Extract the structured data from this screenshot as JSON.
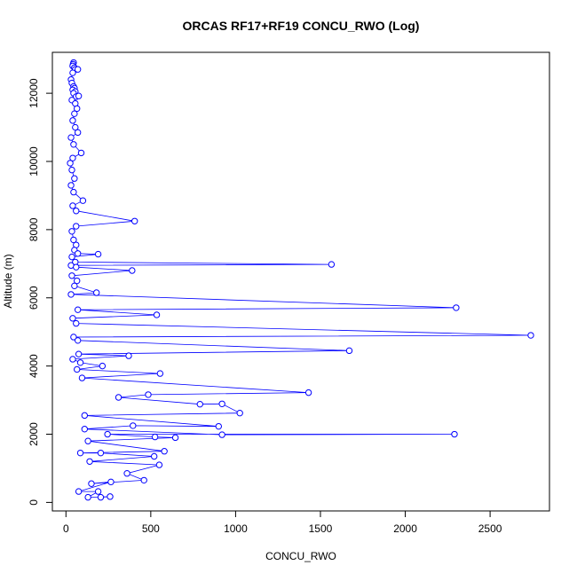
{
  "chart_data": {
    "type": "line",
    "title": "ORCAS RF17+RF19 CONCU_RWO (Log)",
    "xlabel": "CONCU_RWO",
    "ylabel": "Altitude (m)",
    "xlim": [
      -80,
      2850
    ],
    "ylim": [
      -250,
      13200
    ],
    "xticks": [
      0,
      500,
      1000,
      1500,
      2000,
      2500
    ],
    "yticks": [
      0,
      2000,
      4000,
      6000,
      8000,
      10000,
      12000
    ],
    "series_color": "#0000ff",
    "marker": "open-circle",
    "points": [
      [
        45,
        12900
      ],
      [
        42,
        12850
      ],
      [
        40,
        12800
      ],
      [
        50,
        12750
      ],
      [
        55,
        12700
      ],
      [
        70,
        12700
      ],
      [
        40,
        12600
      ],
      [
        30,
        12400
      ],
      [
        35,
        12300
      ],
      [
        45,
        12200
      ],
      [
        50,
        12150
      ],
      [
        40,
        12100
      ],
      [
        55,
        12050
      ],
      [
        45,
        12000
      ],
      [
        60,
        11900
      ],
      [
        75,
        11920
      ],
      [
        35,
        11800
      ],
      [
        55,
        11700
      ],
      [
        65,
        11550
      ],
      [
        50,
        11400
      ],
      [
        40,
        11200
      ],
      [
        55,
        11000
      ],
      [
        70,
        10850
      ],
      [
        30,
        10700
      ],
      [
        45,
        10500
      ],
      [
        90,
        10250
      ],
      [
        40,
        10100
      ],
      [
        25,
        9950
      ],
      [
        35,
        9750
      ],
      [
        50,
        9500
      ],
      [
        30,
        9300
      ],
      [
        45,
        9100
      ],
      [
        100,
        8850
      ],
      [
        40,
        8700
      ],
      [
        60,
        8550
      ],
      [
        405,
        8250
      ],
      [
        60,
        8100
      ],
      [
        35,
        7950
      ],
      [
        45,
        7700
      ],
      [
        60,
        7550
      ],
      [
        50,
        7400
      ],
      [
        70,
        7300
      ],
      [
        190,
        7280
      ],
      [
        35,
        7200
      ],
      [
        55,
        7050
      ],
      [
        1565,
        6980
      ],
      [
        30,
        6950
      ],
      [
        60,
        6900
      ],
      [
        390,
        6800
      ],
      [
        35,
        6650
      ],
      [
        65,
        6500
      ],
      [
        50,
        6350
      ],
      [
        180,
        6150
      ],
      [
        30,
        6100
      ],
      [
        2300,
        5710
      ],
      [
        70,
        5650
      ],
      [
        535,
        5500
      ],
      [
        40,
        5400
      ],
      [
        60,
        5250
      ],
      [
        2740,
        4900
      ],
      [
        45,
        4850
      ],
      [
        70,
        4750
      ],
      [
        1670,
        4450
      ],
      [
        75,
        4350
      ],
      [
        370,
        4300
      ],
      [
        40,
        4200
      ],
      [
        85,
        4100
      ],
      [
        215,
        4000
      ],
      [
        65,
        3900
      ],
      [
        555,
        3780
      ],
      [
        95,
        3650
      ],
      [
        1430,
        3220
      ],
      [
        485,
        3160
      ],
      [
        310,
        3080
      ],
      [
        790,
        2880
      ],
      [
        920,
        2890
      ],
      [
        1025,
        2620
      ],
      [
        110,
        2550
      ],
      [
        900,
        2230
      ],
      [
        395,
        2250
      ],
      [
        110,
        2150
      ],
      [
        920,
        1985
      ],
      [
        2290,
        2000
      ],
      [
        245,
        2000
      ],
      [
        525,
        1920
      ],
      [
        645,
        1900
      ],
      [
        130,
        1800
      ],
      [
        580,
        1500
      ],
      [
        85,
        1450
      ],
      [
        205,
        1450
      ],
      [
        520,
        1350
      ],
      [
        140,
        1200
      ],
      [
        550,
        1100
      ],
      [
        360,
        850
      ],
      [
        460,
        650
      ],
      [
        150,
        550
      ],
      [
        265,
        600
      ],
      [
        75,
        320
      ],
      [
        190,
        320
      ],
      [
        130,
        150
      ],
      [
        260,
        170
      ],
      [
        205,
        150
      ]
    ]
  }
}
